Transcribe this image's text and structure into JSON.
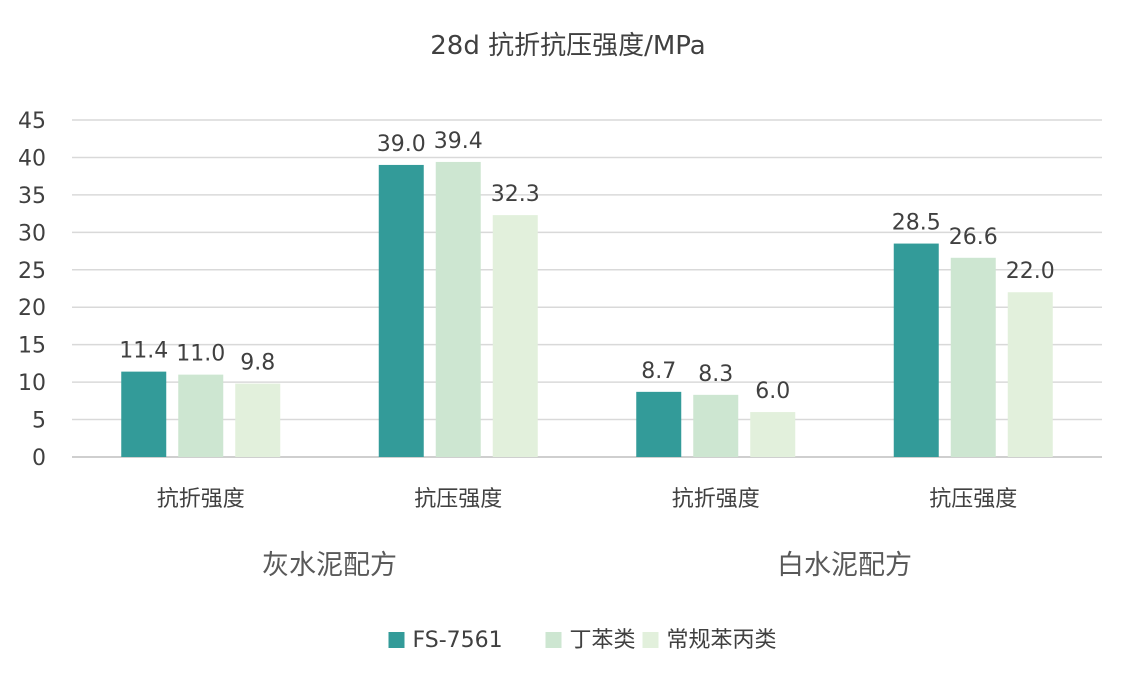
{
  "chart_data": {
    "type": "bar",
    "title": "28d 抗折抗压强度/MPa",
    "categories": [
      "抗折强度",
      "抗压强度",
      "抗折强度",
      "抗压强度"
    ],
    "groups": [
      {
        "label": "灰水泥配方",
        "span": [
          0,
          1
        ]
      },
      {
        "label": "白水泥配方",
        "span": [
          2,
          3
        ]
      }
    ],
    "series": [
      {
        "name": "FS-7561",
        "values": [
          11.4,
          39.0,
          8.7,
          28.5
        ],
        "labels": [
          "11.4",
          "39.0",
          "8.7",
          "28.5"
        ],
        "color": "#339b99"
      },
      {
        "name": "丁苯类",
        "values": [
          11.0,
          39.4,
          8.3,
          26.6
        ],
        "labels": [
          "11.0",
          "39.4",
          "8.3",
          "26.6"
        ],
        "color": "#cde6d1"
      },
      {
        "name": "常规苯丙类",
        "values": [
          9.8,
          32.3,
          6.0,
          22.0
        ],
        "labels": [
          "9.8",
          "32.3",
          "6.0",
          "22.0"
        ],
        "color": "#e2f0dc"
      }
    ],
    "ylim": [
      0,
      45
    ],
    "yticks": [
      "0",
      "5",
      "10",
      "15",
      "20",
      "25",
      "30",
      "35",
      "40",
      "45"
    ],
    "grid": true,
    "legend": "bottom"
  }
}
